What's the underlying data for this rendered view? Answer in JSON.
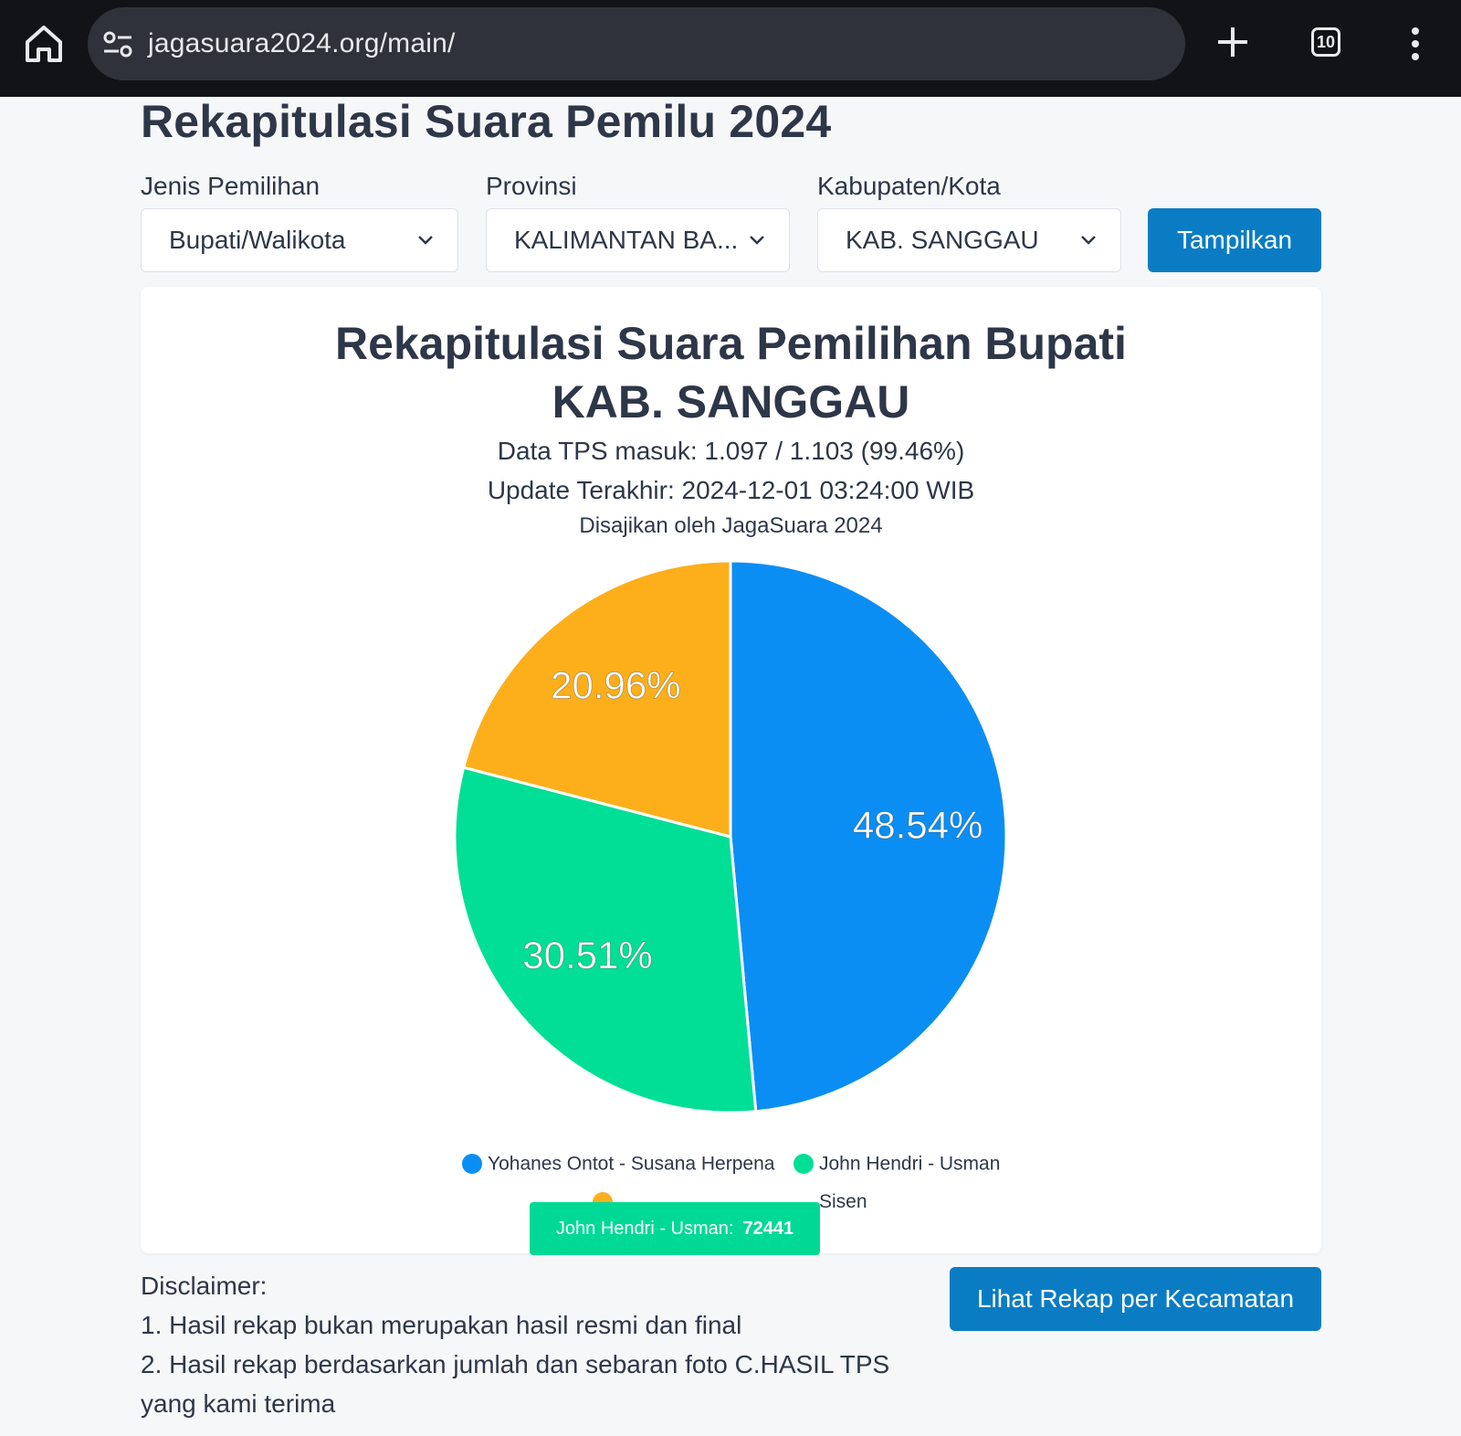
{
  "browser": {
    "url": "jagasuara2024.org/main/",
    "tab_count": "10",
    "icons": [
      "home-icon",
      "site-settings-icon",
      "plus-icon",
      "tabs-icon",
      "more-vert-icon"
    ]
  },
  "page": {
    "title": "Rekapitulasi Suara Pemilu 2024"
  },
  "filters": {
    "jenis": {
      "label": "Jenis Pemilihan",
      "value": "Bupati/Walikota"
    },
    "provinsi": {
      "label": "Provinsi",
      "value": "KALIMANTAN BA..."
    },
    "kabupaten": {
      "label": "Kabupaten/Kota",
      "value": "KAB. SANGGAU"
    },
    "submit_label": "Tampilkan"
  },
  "card": {
    "title_line1": "Rekapitulasi Suara Pemilihan Bupati",
    "title_line2": "KAB. SANGGAU",
    "tps_info": "Data TPS masuk: 1.097 / 1.103 (99.46%)",
    "last_update": "Update Terakhir: 2024-12-01 03:24:00 WIB",
    "credit": "Disajikan oleh JagaSuara 2024"
  },
  "chart_data": {
    "type": "pie",
    "slices": [
      {
        "name": "Yohanes Ontot - Susana Herpena",
        "value": 48.54,
        "label": "48.54%",
        "color": "#0b8ef4"
      },
      {
        "name": "John Hendri - Usman",
        "value": 30.51,
        "label": "30.51%",
        "color": "#00df95",
        "votes": "72441"
      },
      {
        "name": "Yosep Alexo Anthony Sisen",
        "value": 20.96,
        "label": "20.96%",
        "color": "#fcaf1b"
      }
    ],
    "legend_placement": "bottom",
    "legend_row2_visible": "Sisen"
  },
  "tooltip": {
    "name": "John Hendri - Usman:",
    "value": "72441"
  },
  "disclaimer": {
    "heading": "Disclaimer:",
    "line1": "1. Hasil rekap bukan merupakan hasil resmi dan final",
    "line2": "2. Hasil rekap berdasarkan jumlah dan sebaran foto C.HASIL TPS",
    "line3": "yang kami terima"
  },
  "actions": {
    "kecamatan_label": "Lihat Rekap per Kecamatan"
  }
}
